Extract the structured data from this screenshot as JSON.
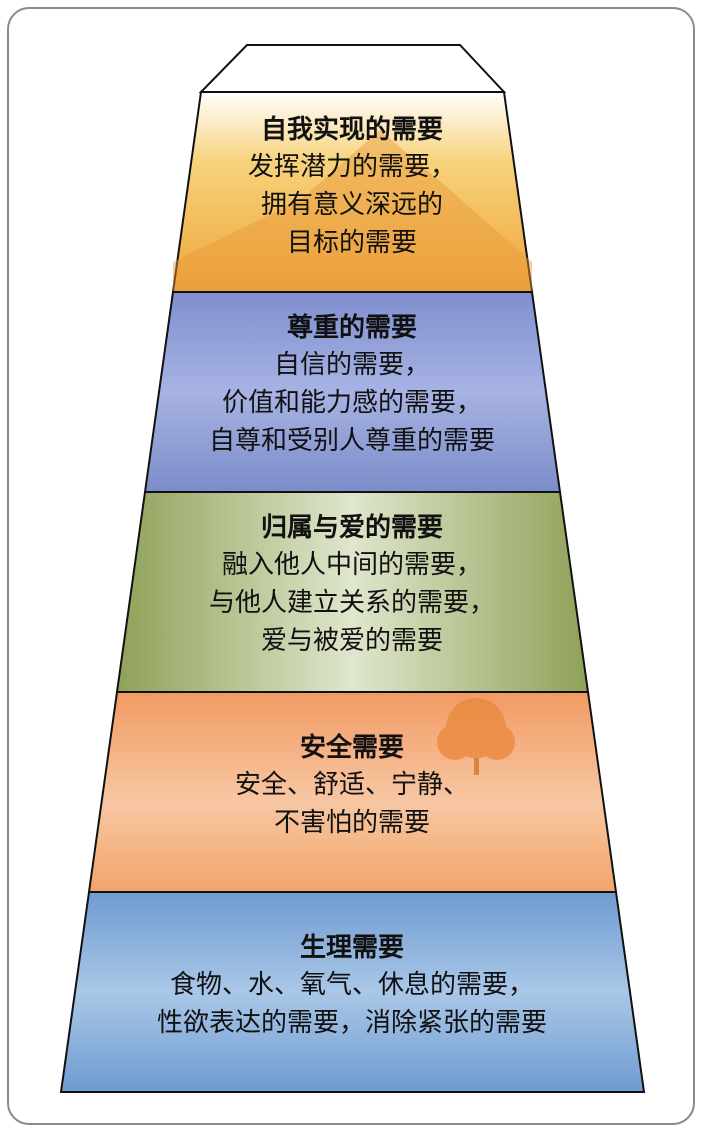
{
  "levels": [
    {
      "title": "自我实现的需要",
      "lines": [
        "发挥潜力的需要，",
        "拥有意义深远的",
        "目标的需要"
      ],
      "color": "#f0b04a"
    },
    {
      "title": "尊重的需要",
      "lines": [
        "自信的需要，",
        "价值和能力感的需要，",
        "自尊和受别人尊重的需要"
      ],
      "color": "#8a9ad6"
    },
    {
      "title": "归属与爱的需要",
      "lines": [
        "融入他人中间的需要，",
        "与他人建立关系的需要，",
        "爱与被爱的需要"
      ],
      "color": "#9fae63"
    },
    {
      "title": "安全需要",
      "lines": [
        "安全、舒适、宁静、",
        "不害怕的需要"
      ],
      "color": "#f0a674"
    },
    {
      "title": "生理需要",
      "lines": [
        "食物、水、氧气、休息的需要，",
        "性欲表达的需要，消除紧张的需要"
      ],
      "color": "#7fa9d8"
    }
  ]
}
